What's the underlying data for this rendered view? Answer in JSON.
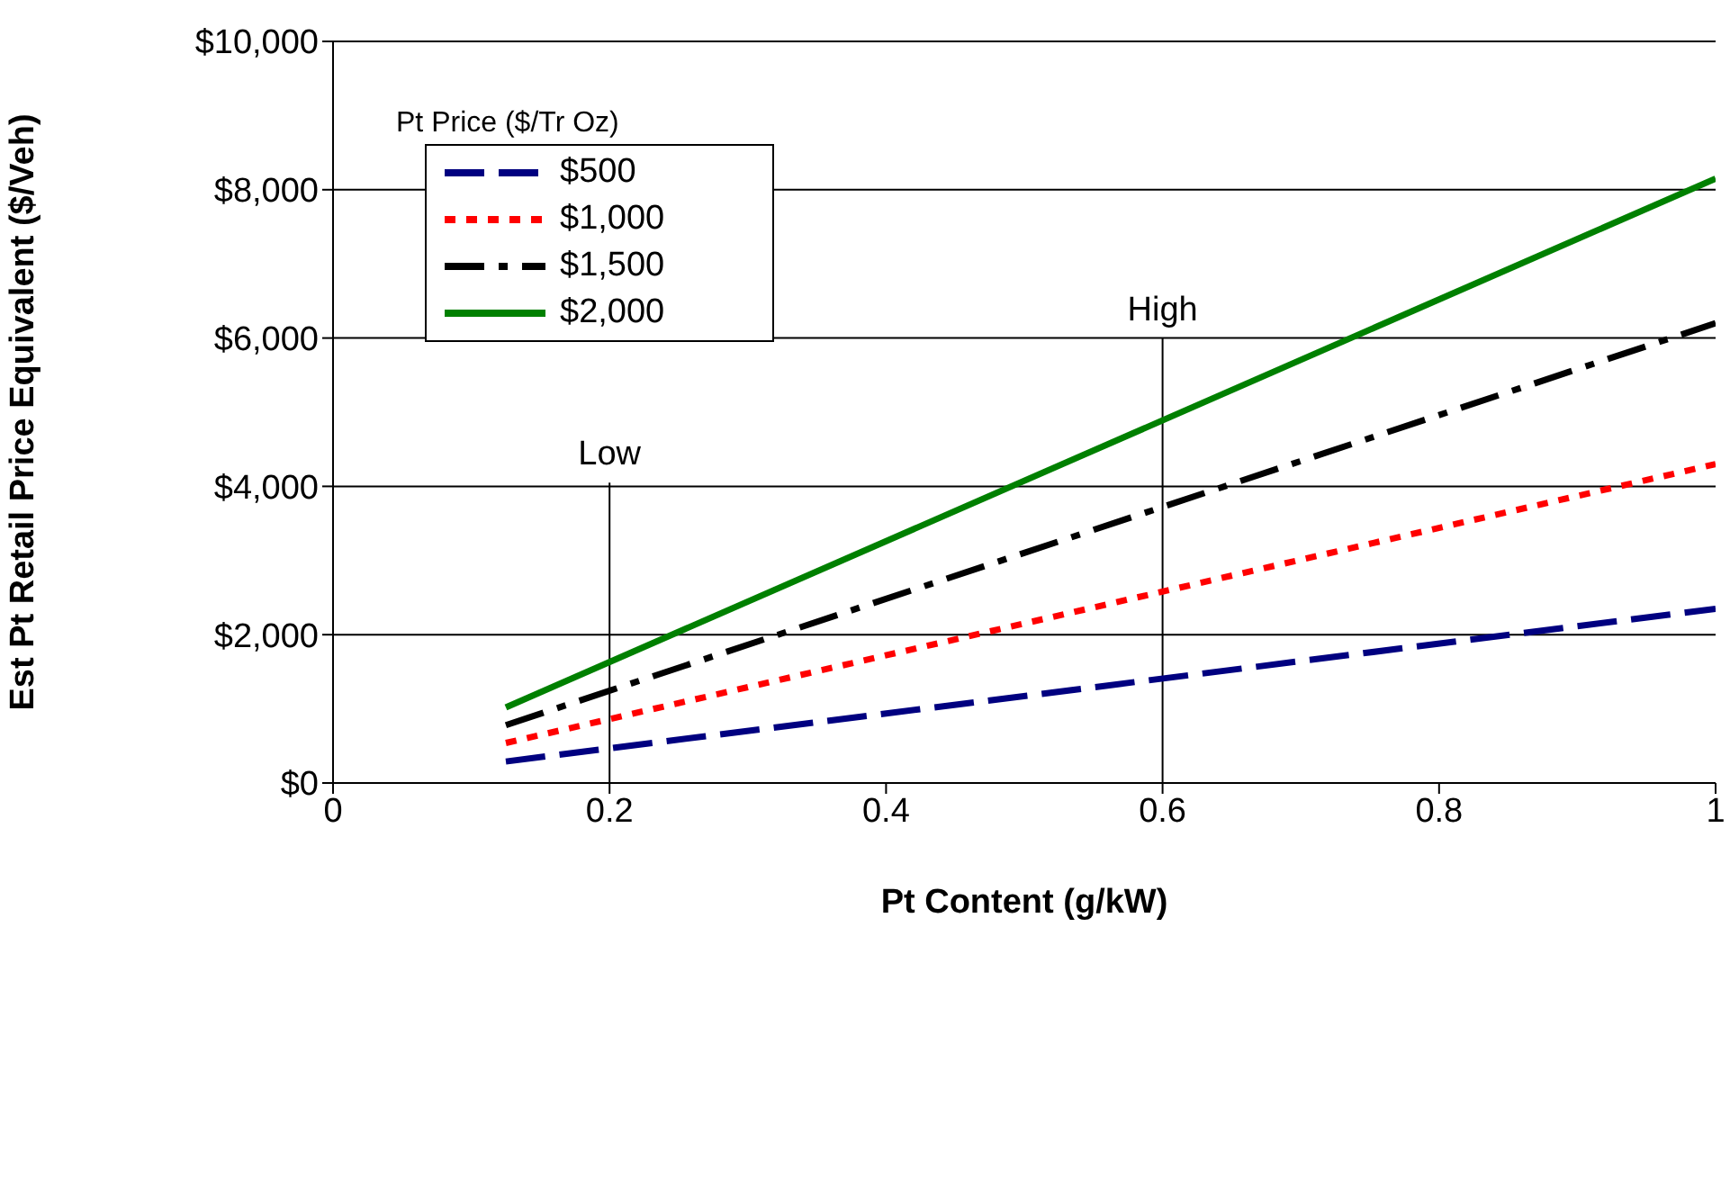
{
  "chart_data": {
    "type": "line",
    "xlabel": "Pt Content (g/kW)",
    "ylabel": "Est Pt Retail Price Equivalent ($/Veh)",
    "legend_title": "Pt Price ($/Tr Oz)",
    "x": [
      0.125,
      1
    ],
    "series": [
      {
        "name": "$500",
        "color": "#000080",
        "values": [
          290,
          2350
        ],
        "line_style": "dashed"
      },
      {
        "name": "$1,000",
        "color": "#ff0000",
        "values": [
          540,
          4300
        ],
        "line_style": "dotted"
      },
      {
        "name": "$1,500",
        "color": "#000000",
        "values": [
          780,
          6200
        ],
        "line_style": "dashdot"
      },
      {
        "name": "$2,000",
        "color": "#008000",
        "values": [
          1020,
          8150
        ],
        "line_style": "solid"
      }
    ],
    "xlim": [
      0,
      1
    ],
    "xticks": [
      0,
      0.2,
      0.4,
      0.6,
      0.8,
      {
        "value": 1,
        "label": "1"
      }
    ],
    "ylim": [
      0,
      10000
    ],
    "yticks": [
      {
        "value": 0,
        "label": "$0"
      },
      {
        "value": 2000,
        "label": "$2,000"
      },
      {
        "value": 4000,
        "label": "$4,000"
      },
      {
        "value": 6000,
        "label": "$6,000"
      },
      {
        "value": 8000,
        "label": "$8,000"
      },
      {
        "value": 10000,
        "label": "$10,000"
      }
    ],
    "ref_lines": [
      {
        "axis": "x",
        "value": 0.2,
        "label": "Low"
      },
      {
        "axis": "x",
        "value": 0.6,
        "label": "High"
      }
    ],
    "grid": "y",
    "legend": "top left",
    "marker": "none"
  }
}
